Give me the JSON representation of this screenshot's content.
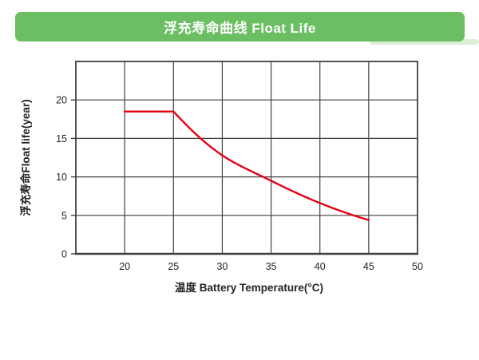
{
  "header": {
    "title": "浮充寿命曲线 Float Life",
    "bg_color": "#6cbe62",
    "text_color": "#ffffff",
    "accent_color": "#dcefd6"
  },
  "chart_data": {
    "type": "line",
    "title": "浮充寿命曲线 Float Life",
    "xlabel": "温度 Battery Temperature(°C)",
    "ylabel": "浮充寿命Float life(year)",
    "xlim": [
      15,
      50
    ],
    "ylim": [
      0,
      25
    ],
    "x_ticks": [
      20,
      25,
      30,
      35,
      40,
      45,
      50
    ],
    "y_ticks": [
      0,
      5,
      10,
      15,
      20
    ],
    "grid": true,
    "legend": "none",
    "grid_color": "#443e3c",
    "text_color": "#262222",
    "series": [
      {
        "name": "Float life",
        "color": "#e60012",
        "x": [
          20,
          25,
          30,
          35,
          40,
          45
        ],
        "y": [
          18.5,
          18.5,
          12.8,
          9.5,
          6.6,
          4.4
        ]
      }
    ]
  }
}
